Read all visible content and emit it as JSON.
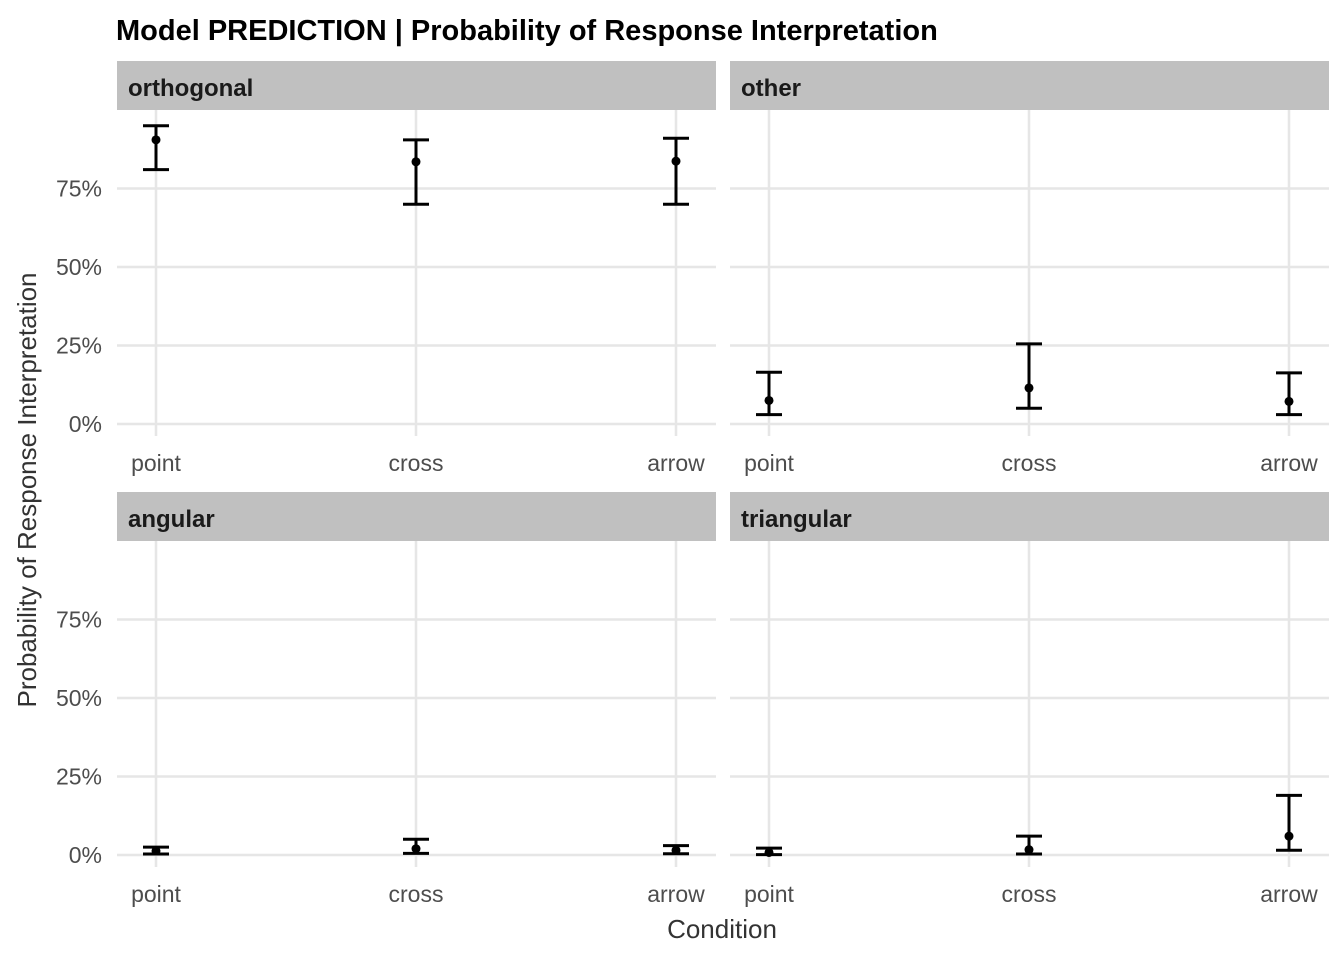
{
  "chart_data": {
    "type": "errorbar",
    "title": "Model PREDICTION | Probability of Response Interpretation",
    "xlabel": "Condition",
    "ylabel": "Probability of Response Interpretation",
    "categories": [
      "point",
      "cross",
      "arrow"
    ],
    "ylim": [
      0,
      1
    ],
    "yticks": [
      0,
      0.25,
      0.5,
      0.75
    ],
    "ytick_labels": [
      "0%",
      "25%",
      "50%",
      "75%"
    ],
    "grid": true,
    "layout": "2x2 facets, free x ticks per panel, shared y axis on left",
    "panels": [
      {
        "name": "orthogonal",
        "estimates": [
          0.905,
          0.835,
          0.837
        ],
        "lower": [
          0.81,
          0.7,
          0.7
        ],
        "upper": [
          0.95,
          0.905,
          0.91
        ]
      },
      {
        "name": "other",
        "estimates": [
          0.075,
          0.115,
          0.072
        ],
        "lower": [
          0.03,
          0.05,
          0.03
        ],
        "upper": [
          0.165,
          0.255,
          0.163
        ]
      },
      {
        "name": "angular",
        "estimates": [
          0.013,
          0.02,
          0.015
        ],
        "lower": [
          0.003,
          0.005,
          0.004
        ],
        "upper": [
          0.025,
          0.05,
          0.03
        ]
      },
      {
        "name": "triangular",
        "estimates": [
          0.008,
          0.017,
          0.06
        ],
        "lower": [
          0.001,
          0.003,
          0.015
        ],
        "upper": [
          0.022,
          0.06,
          0.19
        ]
      }
    ]
  }
}
